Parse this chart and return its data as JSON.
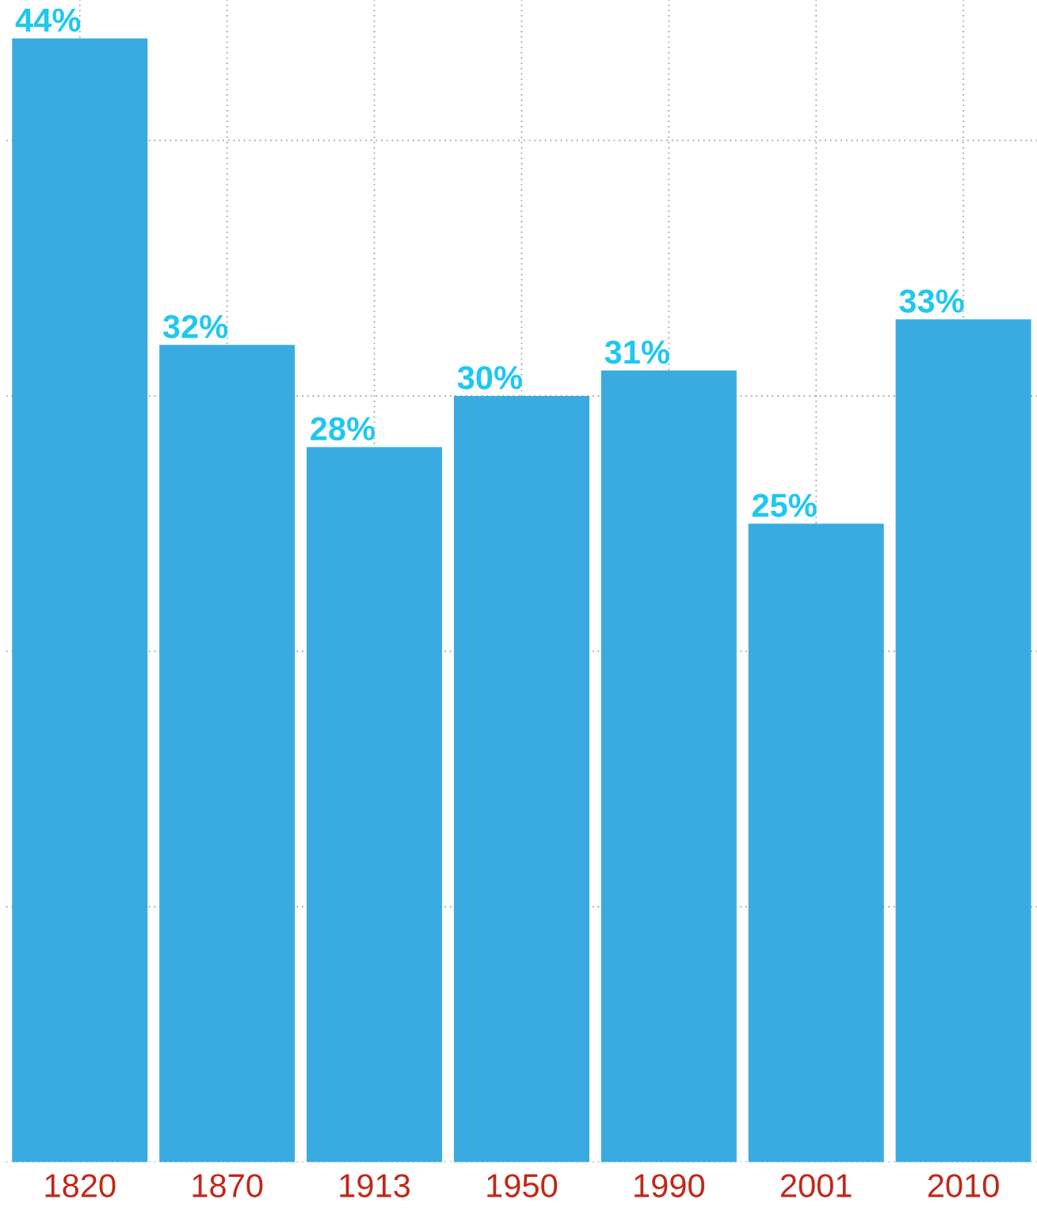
{
  "chart_data": {
    "type": "bar",
    "categories": [
      "1820",
      "1870",
      "1913",
      "1950",
      "1990",
      "2001",
      "2010"
    ],
    "values": [
      44,
      32,
      28,
      30,
      31,
      25,
      33
    ],
    "value_labels": [
      "44%",
      "32%",
      "28%",
      "30%",
      "31%",
      "25%",
      "33%"
    ],
    "color": "#3aabe0",
    "ylim": [
      0,
      45.5
    ],
    "grid": true,
    "tick_labels": "x"
  }
}
